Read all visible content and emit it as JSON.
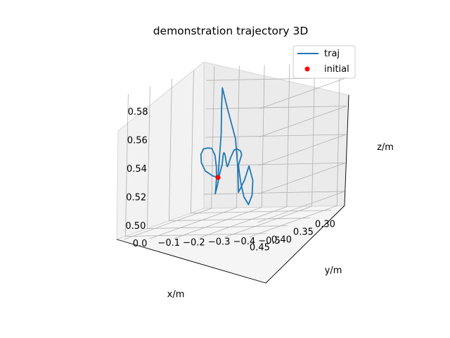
{
  "chart_data": {
    "type": "line3d",
    "title": "demonstration trajectory 3D",
    "xlabel": "x/m",
    "ylabel": "y/m",
    "zlabel": "z/m",
    "x_ticks": [
      "0.30",
      "0.35",
      "0.40",
      "0.45"
    ],
    "y_ticks": [
      "0.0",
      "−0.1",
      "−0.2",
      "−0.3",
      "−0.4",
      "−0.5"
    ],
    "z_ticks": [
      "0.50",
      "0.52",
      "0.54",
      "0.56",
      "0.58"
    ],
    "xlim": [
      0.27,
      0.47
    ],
    "ylim": [
      -0.53,
      0.03
    ],
    "zlim": [
      0.49,
      0.59
    ],
    "grid": true,
    "legend_position": "top-right",
    "legend": [
      {
        "label": "traj",
        "color": "#1f77b4",
        "marker": "line"
      },
      {
        "label": "initial",
        "color": "#ff0000",
        "marker": "dot"
      }
    ],
    "series": [
      {
        "name": "traj",
        "color": "#1f77b4",
        "points": [
          [
            0.352,
            -0.165,
            0.52
          ],
          [
            0.358,
            -0.18,
            0.535
          ],
          [
            0.364,
            -0.195,
            0.552
          ],
          [
            0.37,
            -0.205,
            0.572
          ],
          [
            0.372,
            -0.21,
            0.585
          ],
          [
            0.376,
            -0.24,
            0.57
          ],
          [
            0.38,
            -0.28,
            0.55
          ],
          [
            0.385,
            -0.3,
            0.53
          ],
          [
            0.388,
            -0.31,
            0.513
          ],
          [
            0.392,
            -0.34,
            0.522
          ],
          [
            0.394,
            -0.36,
            0.532
          ],
          [
            0.396,
            -0.38,
            0.522
          ],
          [
            0.4,
            -0.385,
            0.512
          ],
          [
            0.405,
            -0.38,
            0.506
          ],
          [
            0.41,
            -0.37,
            0.512
          ],
          [
            0.412,
            -0.36,
            0.522
          ],
          [
            0.405,
            -0.34,
            0.53
          ],
          [
            0.395,
            -0.32,
            0.533
          ],
          [
            0.38,
            -0.3,
            0.535
          ],
          [
            0.365,
            -0.28,
            0.537
          ],
          [
            0.35,
            -0.25,
            0.538
          ],
          [
            0.335,
            -0.21,
            0.538
          ],
          [
            0.322,
            -0.175,
            0.536
          ],
          [
            0.315,
            -0.15,
            0.53
          ],
          [
            0.312,
            -0.135,
            0.524
          ],
          [
            0.308,
            -0.125,
            0.523
          ],
          [
            0.302,
            -0.11,
            0.526
          ],
          [
            0.296,
            -0.095,
            0.53
          ],
          [
            0.29,
            -0.08,
            0.531
          ],
          [
            0.286,
            -0.07,
            0.529
          ],
          [
            0.282,
            -0.06,
            0.522
          ],
          [
            0.284,
            -0.055,
            0.516
          ],
          [
            0.286,
            -0.05,
            0.508
          ],
          [
            0.288,
            -0.045,
            0.502
          ],
          [
            0.284,
            -0.04,
            0.506
          ],
          [
            0.28,
            -0.035,
            0.512
          ],
          [
            0.278,
            -0.03,
            0.52
          ],
          [
            0.276,
            -0.02,
            0.528
          ],
          [
            0.278,
            -0.01,
            0.533
          ],
          [
            0.285,
            -0.005,
            0.534
          ],
          [
            0.3,
            -0.015,
            0.535
          ],
          [
            0.32,
            -0.04,
            0.533
          ],
          [
            0.336,
            -0.07,
            0.529
          ],
          [
            0.344,
            -0.1,
            0.524
          ],
          [
            0.35,
            -0.14,
            0.521
          ],
          [
            0.352,
            -0.165,
            0.52
          ]
        ]
      }
    ],
    "markers": [
      {
        "name": "initial",
        "color": "#ff0000",
        "point": [
          0.352,
          -0.165,
          0.52
        ]
      }
    ]
  }
}
